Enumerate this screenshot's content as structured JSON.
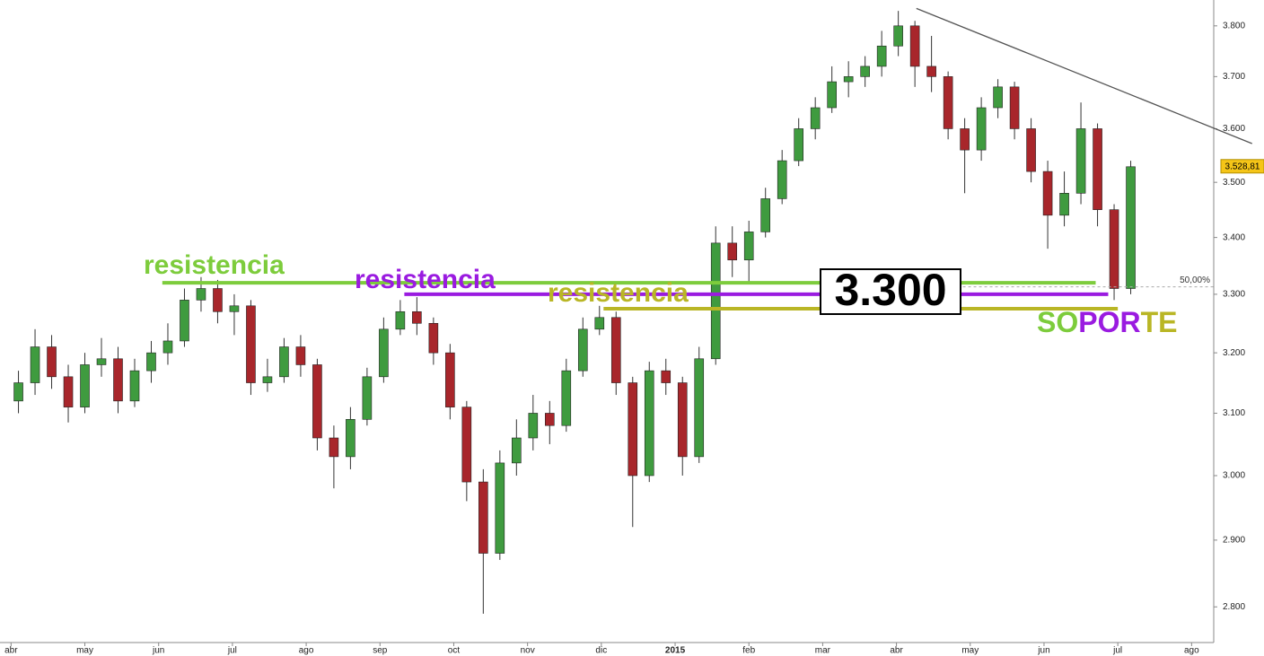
{
  "chart_data": {
    "type": "candlestick",
    "log_y": true,
    "up_color": "#3f9b3f",
    "down_color": "#a8262b",
    "x": [
      0.1,
      0.325,
      0.55,
      0.775,
      1.0,
      1.225,
      1.45,
      1.675,
      1.9,
      2.125,
      2.35,
      2.575,
      2.8,
      3.025,
      3.25,
      3.475,
      3.7,
      3.925,
      4.15,
      4.375,
      4.6,
      4.825,
      5.05,
      5.275,
      5.5,
      5.725,
      5.95,
      6.175,
      6.4,
      6.625,
      6.85,
      7.075,
      7.3,
      7.525,
      7.75,
      7.975,
      8.2,
      8.425,
      8.65,
      8.875,
      9.1,
      9.325,
      9.55,
      9.775,
      10.0,
      10.225,
      10.45,
      10.675,
      10.9,
      11.125,
      11.35,
      11.575,
      11.8,
      12.025,
      12.25,
      12.475,
      12.7,
      12.925,
      13.15,
      13.375,
      13.6,
      13.825,
      14.05,
      14.275,
      14.5,
      14.725,
      14.95,
      15.175
    ],
    "open": [
      3120,
      3150,
      3210,
      3160,
      3110,
      3180,
      3190,
      3120,
      3170,
      3200,
      3220,
      3290,
      3310,
      3270,
      3280,
      3150,
      3160,
      3210,
      3180,
      3060,
      3030,
      3090,
      3160,
      3240,
      3270,
      3250,
      3200,
      3110,
      2990,
      2880,
      3020,
      3060,
      3100,
      3080,
      3170,
      3240,
      3260,
      3150,
      3000,
      3170,
      3150,
      3030,
      3190,
      3390,
      3360,
      3410,
      3470,
      3540,
      3600,
      3640,
      3690,
      3700,
      3720,
      3760,
      3800,
      3720,
      3700,
      3600,
      3560,
      3640,
      3680,
      3600,
      3520,
      3440,
      3480,
      3600,
      3450,
      3310
    ],
    "high": [
      3170,
      3240,
      3230,
      3180,
      3200,
      3225,
      3210,
      3190,
      3220,
      3250,
      3310,
      3330,
      3325,
      3300,
      3290,
      3190,
      3225,
      3230,
      3190,
      3080,
      3110,
      3175,
      3260,
      3290,
      3295,
      3260,
      3215,
      3120,
      3010,
      3040,
      3090,
      3130,
      3120,
      3190,
      3260,
      3280,
      3270,
      3160,
      3185,
      3190,
      3160,
      3210,
      3420,
      3420,
      3430,
      3490,
      3560,
      3620,
      3660,
      3720,
      3730,
      3740,
      3790,
      3830,
      3810,
      3780,
      3710,
      3620,
      3660,
      3695,
      3690,
      3620,
      3540,
      3520,
      3650,
      3610,
      3460,
      3540
    ],
    "low": [
      3100,
      3130,
      3140,
      3085,
      3100,
      3160,
      3100,
      3110,
      3150,
      3180,
      3210,
      3270,
      3250,
      3230,
      3130,
      3135,
      3150,
      3160,
      3040,
      2980,
      3010,
      3080,
      3150,
      3230,
      3230,
      3180,
      3090,
      2960,
      2790,
      2870,
      3000,
      3040,
      3050,
      3070,
      3160,
      3230,
      3130,
      2920,
      2990,
      3130,
      3000,
      3020,
      3180,
      3330,
      3320,
      3400,
      3460,
      3530,
      3580,
      3630,
      3660,
      3680,
      3700,
      3740,
      3680,
      3670,
      3580,
      3480,
      3540,
      3620,
      3580,
      3500,
      3380,
      3420,
      3460,
      3420,
      3290,
      3300
    ],
    "close": [
      3150,
      3210,
      3160,
      3110,
      3180,
      3190,
      3120,
      3170,
      3200,
      3220,
      3290,
      3310,
      3270,
      3280,
      3150,
      3160,
      3210,
      3180,
      3060,
      3030,
      3090,
      3160,
      3240,
      3270,
      3250,
      3200,
      3110,
      2990,
      2880,
      3020,
      3060,
      3100,
      3080,
      3170,
      3240,
      3260,
      3150,
      3000,
      3170,
      3150,
      3030,
      3190,
      3390,
      3360,
      3410,
      3470,
      3540,
      3600,
      3640,
      3690,
      3700,
      3720,
      3760,
      3800,
      3720,
      3700,
      3600,
      3560,
      3640,
      3680,
      3600,
      3520,
      3440,
      3480,
      3600,
      3450,
      3310,
      3528.81
    ],
    "xlim": [
      -0.15,
      16.3
    ],
    "xticks": [
      {
        "value": 0,
        "label": "abr"
      },
      {
        "value": 1,
        "label": "may"
      },
      {
        "value": 2,
        "label": "jun"
      },
      {
        "value": 3,
        "label": "jul"
      },
      {
        "value": 4,
        "label": "ago"
      },
      {
        "value": 5,
        "label": "sep"
      },
      {
        "value": 6,
        "label": "oct"
      },
      {
        "value": 7,
        "label": "nov"
      },
      {
        "value": 8,
        "label": "dic"
      },
      {
        "value": 9,
        "label": "2015"
      },
      {
        "value": 10,
        "label": "feb"
      },
      {
        "value": 11,
        "label": "mar"
      },
      {
        "value": 12,
        "label": "abr"
      },
      {
        "value": 13,
        "label": "may"
      },
      {
        "value": 14,
        "label": "jun"
      },
      {
        "value": 15,
        "label": "jul"
      },
      {
        "value": 16,
        "label": "ago"
      }
    ],
    "ylim": [
      2748,
      3852
    ],
    "yticks": [
      {
        "value": 2800,
        "label": "2.800"
      },
      {
        "value": 2900,
        "label": "2.900"
      },
      {
        "value": 3000,
        "label": "3.000"
      },
      {
        "value": 3100,
        "label": "3.100"
      },
      {
        "value": 3200,
        "label": "3.200"
      },
      {
        "value": 3300,
        "label": "3.300"
      },
      {
        "value": 3400,
        "label": "3.400"
      },
      {
        "value": 3500,
        "label": "3.500"
      },
      {
        "value": 3600,
        "label": "3.600"
      },
      {
        "value": 3700,
        "label": "3.700"
      },
      {
        "value": 3800,
        "label": "3.800"
      }
    ],
    "last_price": {
      "value": 3528.81,
      "label": "3.528,81"
    },
    "levels": [
      {
        "label": "resistencia",
        "color": "#7dcc3c",
        "price": 3320,
        "x_start": 2.05,
        "x_end": 14.7
      },
      {
        "label": "resistencia",
        "color": "#9a1be0",
        "price": 3300,
        "x_start": 5.33,
        "x_end": 14.87
      },
      {
        "label": "resistencia",
        "color": "#b9b625",
        "price": 3275,
        "x_start": 8.03,
        "x_end": 15.0
      }
    ],
    "level_box": "3.300",
    "soporte": [
      {
        "text": "SO",
        "color": "#7dcc3c"
      },
      {
        "text": "POR",
        "color": "#9a1be0"
      },
      {
        "text": "TE",
        "color": "#b9b625"
      }
    ],
    "fib_level": {
      "label": "50,00%",
      "price": 3313,
      "x_start": 12.9
    },
    "trendline": {
      "x": [
        12.27,
        16.82
      ],
      "y": [
        3835,
        3572
      ],
      "color": "#555555"
    }
  }
}
